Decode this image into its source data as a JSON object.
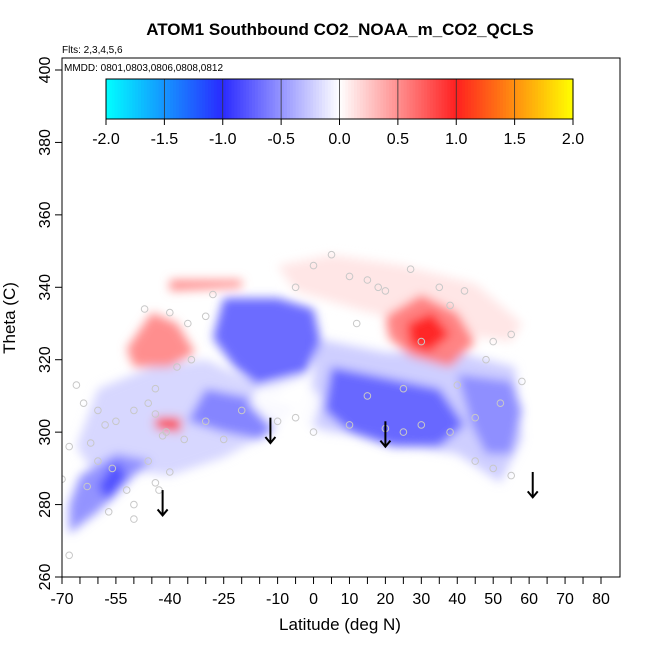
{
  "chart_data": {
    "type": "heatmap",
    "title": "ATOM1 Southbound CO2_NOAA_m_CO2_QCLS",
    "flights_label": "Flts: 2,3,4,5,6",
    "mmdd_label": "MMDD: 0801,0803,0806,0808,0812",
    "xlabel": "Latitude (deg N)",
    "ylabel": "Theta (C)",
    "xlim": [
      -70,
      85
    ],
    "ylim": [
      260,
      402
    ],
    "x_ticks": [
      -70,
      -55,
      -40,
      -25,
      -10,
      0,
      10,
      20,
      30,
      40,
      50,
      60,
      70,
      80
    ],
    "x_tick_labels": [
      "-70",
      "-55",
      "-40",
      "-25",
      "-10",
      "0",
      "10",
      "20",
      "30",
      "40",
      "50",
      "60",
      "70",
      "80"
    ],
    "x_minor_ticks": [
      -65,
      -60,
      -50,
      -45,
      -35,
      -30,
      -20,
      -15,
      -5,
      5,
      15,
      25,
      35,
      45,
      55,
      65,
      75
    ],
    "y_ticks": [
      260,
      280,
      300,
      320,
      340,
      360,
      380,
      400
    ],
    "y_tick_labels": [
      "260",
      "280",
      "300",
      "320",
      "340",
      "360",
      "380",
      "400"
    ],
    "colorbar": {
      "range": [
        -2.0,
        2.0
      ],
      "ticks": [
        -2.0,
        -1.5,
        -1.0,
        -0.5,
        0.0,
        0.5,
        1.0,
        1.5,
        2.0
      ],
      "tick_labels": [
        "-2.0",
        "-1.5",
        "-1.0",
        "-0.5",
        "0.0",
        "0.5",
        "1.0",
        "1.5",
        "2.0"
      ],
      "stops": [
        {
          "v": -2.0,
          "color": "#00ffff"
        },
        {
          "v": -1.0,
          "color": "#2a2aff"
        },
        {
          "v": 0.0,
          "color": "#ffffff"
        },
        {
          "v": 1.0,
          "color": "#ff2020"
        },
        {
          "v": 2.0,
          "color": "#ffff00"
        }
      ]
    },
    "field_regions": [
      {
        "name": "northern-upper-weak-positive",
        "value": 0.12,
        "polygon": [
          [
            -10,
            346
          ],
          [
            5,
            349
          ],
          [
            25,
            346
          ],
          [
            45,
            341
          ],
          [
            58,
            330
          ],
          [
            55,
            325
          ],
          [
            35,
            328
          ],
          [
            12,
            334
          ],
          [
            -5,
            339
          ]
        ]
      },
      {
        "name": "tropics-lower-weak-negative",
        "value": -0.25,
        "polygon": [
          [
            0,
            326
          ],
          [
            20,
            322
          ],
          [
            40,
            322
          ],
          [
            56,
            318
          ],
          [
            58,
            298
          ],
          [
            52,
            286
          ],
          [
            40,
            294
          ],
          [
            28,
            296
          ],
          [
            18,
            299
          ],
          [
            5,
            300
          ],
          [
            -5,
            303
          ],
          [
            0,
            315
          ]
        ]
      },
      {
        "name": "southern-lower-weak-negative",
        "value": -0.2,
        "polygon": [
          [
            -66,
            296
          ],
          [
            -62,
            290
          ],
          [
            -55,
            290
          ],
          [
            -40,
            288
          ],
          [
            -25,
            293
          ],
          [
            -12,
            300
          ],
          [
            -15,
            313
          ],
          [
            -30,
            320
          ],
          [
            -45,
            318
          ],
          [
            -60,
            312
          ]
        ]
      },
      {
        "name": "equatorial-upper-negative",
        "value": -0.75,
        "polygon": [
          [
            -25,
            337
          ],
          [
            -10,
            337
          ],
          [
            0,
            334
          ],
          [
            2,
            325
          ],
          [
            -3,
            315
          ],
          [
            -12,
            310
          ],
          [
            -22,
            318
          ],
          [
            -28,
            326
          ]
        ]
      },
      {
        "name": "equatorial-lower-negative",
        "value": -0.6,
        "polygon": [
          [
            -30,
            312
          ],
          [
            -15,
            309
          ],
          [
            -5,
            307
          ],
          [
            -10,
            302
          ],
          [
            -15,
            298
          ],
          [
            -25,
            300
          ],
          [
            -35,
            303
          ]
        ]
      },
      {
        "name": "northern-tropics-negative",
        "value": -0.75,
        "polygon": [
          [
            5,
            318
          ],
          [
            20,
            315
          ],
          [
            35,
            312
          ],
          [
            42,
            302
          ],
          [
            35,
            296
          ],
          [
            22,
            296
          ],
          [
            10,
            300
          ],
          [
            3,
            306
          ]
        ]
      },
      {
        "name": "north-midlat-negative",
        "value": -0.55,
        "polygon": [
          [
            40,
            316
          ],
          [
            55,
            314
          ],
          [
            58,
            306
          ],
          [
            55,
            294
          ],
          [
            48,
            294
          ],
          [
            44,
            302
          ]
        ]
      },
      {
        "name": "south-highlat-lower-negative",
        "value": -0.55,
        "polygon": [
          [
            -68,
            272
          ],
          [
            -60,
            278
          ],
          [
            -50,
            288
          ],
          [
            -45,
            292
          ],
          [
            -55,
            294
          ],
          [
            -65,
            288
          ],
          [
            -68,
            280
          ]
        ]
      },
      {
        "name": "south-highlat-core-negative",
        "value": -0.85,
        "polygon": [
          [
            -60,
            285
          ],
          [
            -55,
            292
          ],
          [
            -52,
            288
          ],
          [
            -57,
            281
          ]
        ]
      },
      {
        "name": "south-midlat-positive",
        "value": 0.55,
        "polygon": [
          [
            -52,
            323
          ],
          [
            -45,
            333
          ],
          [
            -38,
            330
          ],
          [
            -33,
            322
          ],
          [
            -40,
            318
          ],
          [
            -50,
            318
          ]
        ]
      },
      {
        "name": "north-subtropics-positive",
        "value": 0.6,
        "polygon": [
          [
            20,
            332
          ],
          [
            30,
            338
          ],
          [
            40,
            333
          ],
          [
            45,
            325
          ],
          [
            38,
            318
          ],
          [
            27,
            321
          ],
          [
            21,
            326
          ]
        ]
      },
      {
        "name": "north-subtropics-core-positive",
        "value": 1.0,
        "polygon": [
          [
            26,
            330
          ],
          [
            33,
            333
          ],
          [
            38,
            327
          ],
          [
            32,
            322
          ],
          [
            27,
            324
          ]
        ]
      },
      {
        "name": "south-small-positive-patch",
        "value": 0.9,
        "polygon": [
          [
            -44,
            304
          ],
          [
            -37,
            304
          ],
          [
            -37,
            300
          ],
          [
            -44,
            301
          ]
        ]
      },
      {
        "name": "upper-south-positive-band",
        "value": 0.55,
        "polygon": [
          [
            -40,
            342
          ],
          [
            -20,
            342
          ],
          [
            -20,
            340
          ],
          [
            -40,
            339
          ]
        ]
      }
    ],
    "blank_notch": {
      "polygon": [
        [
          -15,
          313
        ],
        [
          -3,
          316
        ],
        [
          2,
          309
        ],
        [
          0,
          302
        ],
        [
          -12,
          302
        ],
        [
          -18,
          308
        ]
      ]
    },
    "sample_points": [
      [
        -68,
        266
      ],
      [
        -70,
        287
      ],
      [
        -68,
        296
      ],
      [
        -66,
        313
      ],
      [
        -64,
        308
      ],
      [
        -60,
        306
      ],
      [
        -55,
        303
      ],
      [
        -50,
        306
      ],
      [
        -46,
        308
      ],
      [
        -44,
        312
      ],
      [
        -41,
        300
      ],
      [
        -38,
        318
      ],
      [
        -34,
        320
      ],
      [
        -58,
        302
      ],
      [
        -46,
        292
      ],
      [
        -44,
        286
      ],
      [
        -43,
        284
      ],
      [
        -50,
        280
      ],
      [
        -40,
        289
      ],
      [
        -56,
        290
      ],
      [
        -52,
        284
      ],
      [
        -47,
        334
      ],
      [
        -40,
        333
      ],
      [
        -35,
        330
      ],
      [
        -30,
        332
      ],
      [
        -28,
        338
      ],
      [
        -5,
        340
      ],
      [
        0,
        346
      ],
      [
        5,
        349
      ],
      [
        10,
        343
      ],
      [
        15,
        342
      ],
      [
        18,
        340
      ],
      [
        20,
        339
      ],
      [
        27,
        345
      ],
      [
        35,
        340
      ],
      [
        38,
        335
      ],
      [
        42,
        339
      ],
      [
        -5,
        304
      ],
      [
        -10,
        303
      ],
      [
        0,
        300
      ],
      [
        10,
        302
      ],
      [
        20,
        301
      ],
      [
        25,
        300
      ],
      [
        30,
        302
      ],
      [
        38,
        300
      ],
      [
        45,
        292
      ],
      [
        50,
        290
      ],
      [
        55,
        288
      ],
      [
        58,
        314
      ],
      [
        48,
        320
      ],
      [
        45,
        304
      ],
      [
        52,
        308
      ],
      [
        40,
        313
      ],
      [
        25,
        312
      ],
      [
        15,
        310
      ],
      [
        12,
        330
      ],
      [
        30,
        325
      ],
      [
        50,
        325
      ],
      [
        55,
        327
      ],
      [
        -20,
        306
      ],
      [
        -25,
        298
      ],
      [
        -30,
        303
      ],
      [
        -60,
        292
      ],
      [
        -63,
        285
      ],
      [
        -57,
        278
      ],
      [
        -50,
        276
      ],
      [
        -62,
        297
      ],
      [
        -42,
        299
      ],
      [
        -36,
        298
      ],
      [
        -44,
        305
      ]
    ],
    "arrows": [
      {
        "lat": -42,
        "theta_top": 284,
        "theta_bottom": 277
      },
      {
        "lat": -12,
        "theta_top": 304,
        "theta_bottom": 297
      },
      {
        "lat": 20,
        "theta_top": 303,
        "theta_bottom": 296
      },
      {
        "lat": 61,
        "theta_top": 289,
        "theta_bottom": 282
      }
    ]
  }
}
